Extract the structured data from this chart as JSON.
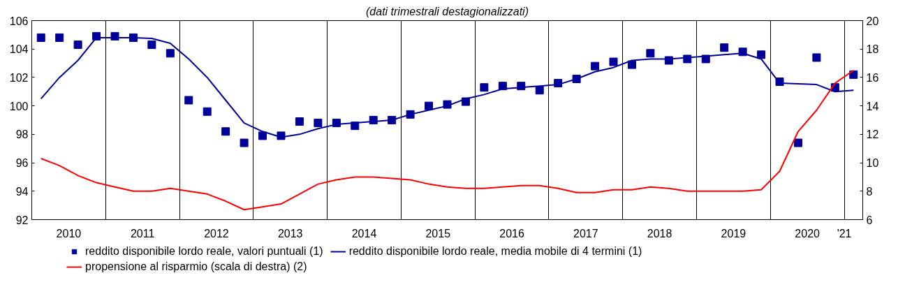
{
  "chart_data": {
    "type": "line",
    "subtitle": "(dati trimestrali destagionalizzati)",
    "xlim": [
      2010,
      2021.25
    ],
    "xticks": [
      {
        "value": 2010.5,
        "label": "2010"
      },
      {
        "value": 2011.5,
        "label": "2011"
      },
      {
        "value": 2012.5,
        "label": "2012"
      },
      {
        "value": 2013.5,
        "label": "2013"
      },
      {
        "value": 2014.5,
        "label": "2014"
      },
      {
        "value": 2015.5,
        "label": "2015"
      },
      {
        "value": 2016.5,
        "label": "2016"
      },
      {
        "value": 2017.5,
        "label": "2017"
      },
      {
        "value": 2018.5,
        "label": "2018"
      },
      {
        "value": 2019.5,
        "label": "2019"
      },
      {
        "value": 2020.5,
        "label": "2020"
      },
      {
        "value": 2021,
        "label": "'21"
      },
      {
        "value": 2011,
        "label": null
      },
      {
        "value": 2012,
        "label": null
      },
      {
        "value": 2013,
        "label": null
      },
      {
        "value": 2014,
        "label": null
      },
      {
        "value": 2015,
        "label": null
      },
      {
        "value": 2016,
        "label": null
      },
      {
        "value": 2017,
        "label": null
      },
      {
        "value": 2018,
        "label": null
      },
      {
        "value": 2019,
        "label": null
      },
      {
        "value": 2020,
        "label": null
      }
    ],
    "ylim": [
      92,
      106
    ],
    "yticks": [
      92,
      94,
      96,
      98,
      100,
      102,
      104,
      106
    ],
    "y2lim": [
      6,
      20
    ],
    "y2ticks": [
      6,
      8,
      10,
      12,
      14,
      16,
      18,
      20
    ],
    "grid": "x",
    "legend": "bottom",
    "x": [
      2010.125,
      2010.375,
      2010.625,
      2010.875,
      2011.125,
      2011.375,
      2011.625,
      2011.875,
      2012.125,
      2012.375,
      2012.625,
      2012.875,
      2013.125,
      2013.375,
      2013.625,
      2013.875,
      2014.125,
      2014.375,
      2014.625,
      2014.875,
      2015.125,
      2015.375,
      2015.625,
      2015.875,
      2016.125,
      2016.375,
      2016.625,
      2016.875,
      2017.125,
      2017.375,
      2017.625,
      2017.875,
      2018.125,
      2018.375,
      2018.625,
      2018.875,
      2019.125,
      2019.375,
      2019.625,
      2019.875,
      2020.125,
      2020.375,
      2020.625,
      2020.875,
      2021.125
    ],
    "series": [
      {
        "name": "reddito disponibile lordo reale, valori puntuali (1)",
        "type": "scatter",
        "marker": "square",
        "color": "#000099",
        "values": [
          104.8,
          104.8,
          104.3,
          104.9,
          104.9,
          104.8,
          104.3,
          103.7,
          100.4,
          99.6,
          98.2,
          97.4,
          97.9,
          97.9,
          98.9,
          98.8,
          98.8,
          98.6,
          99.0,
          99.0,
          99.4,
          100.0,
          100.1,
          100.3,
          101.3,
          101.4,
          101.4,
          101.1,
          101.6,
          101.9,
          102.8,
          103.1,
          102.9,
          103.7,
          103.2,
          103.3,
          103.3,
          104.1,
          103.8,
          103.6,
          101.7,
          97.4,
          103.4,
          101.3,
          102.2
        ]
      },
      {
        "name": "reddito disponibile lordo reale, media mobile di 4 termini (1)",
        "type": "line",
        "marker": "none",
        "line_style": "solid",
        "color": "#000099",
        "values": [
          100.5,
          102.0,
          103.2,
          104.8,
          104.8,
          104.8,
          104.75,
          104.4,
          103.3,
          102.0,
          100.4,
          98.8,
          98.2,
          97.8,
          98.0,
          98.4,
          98.7,
          98.8,
          98.9,
          99.0,
          99.4,
          99.7,
          100.0,
          100.5,
          100.8,
          101.2,
          101.3,
          101.4,
          101.5,
          101.9,
          102.4,
          102.7,
          103.2,
          103.3,
          103.3,
          103.4,
          103.5,
          103.6,
          103.7,
          103.3,
          101.6,
          101.55,
          101.5,
          101.0,
          101.1
        ]
      },
      {
        "name": "propensione al risparmio (scala di destra) (2)",
        "type": "line",
        "axis": "y2",
        "marker": "none",
        "line_style": "solid",
        "color": "#ff0000",
        "values": [
          10.3,
          9.8,
          9.1,
          8.6,
          8.3,
          8.0,
          8.0,
          8.2,
          8.0,
          7.8,
          7.3,
          6.7,
          6.9,
          7.1,
          7.8,
          8.5,
          8.8,
          9.0,
          9.0,
          8.9,
          8.8,
          8.5,
          8.3,
          8.2,
          8.2,
          8.3,
          8.4,
          8.4,
          8.2,
          7.9,
          7.9,
          8.1,
          8.1,
          8.3,
          8.2,
          8.0,
          8.0,
          8.0,
          8.0,
          8.1,
          9.4,
          12.2,
          13.7,
          15.6,
          16.5
        ]
      }
    ]
  }
}
